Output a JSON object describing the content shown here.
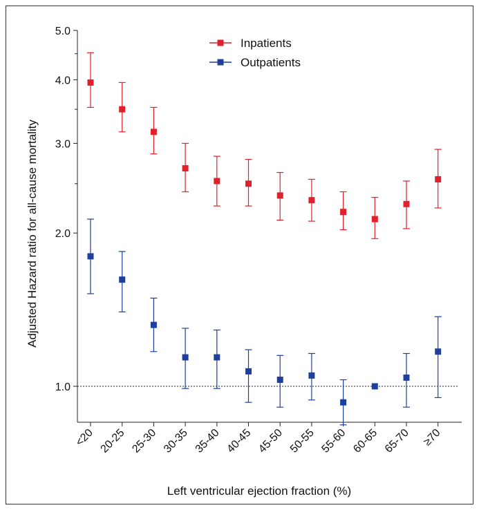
{
  "chart_data": {
    "type": "scatter",
    "title": "",
    "xlabel": "Left ventricular ejection fraction (%)",
    "ylabel": "Adjusted Hazard ratio for all-cause mortality",
    "y_scale": "log",
    "ylim": [
      0.85,
      5.0
    ],
    "y_major_ticks": [
      1.0,
      2.0,
      3.0,
      4.0,
      5.0
    ],
    "y_tick_labels": [
      "1.0",
      "2.0",
      "3.0",
      "4.0",
      "5.0"
    ],
    "y_minor_ticks": [
      2.5,
      3.5,
      4.5
    ],
    "reference_line": 1.0,
    "grid": false,
    "legend_position": "top-center",
    "categories": [
      "<20",
      "20-25",
      "25-30",
      "30-35",
      "35-40",
      "40-45",
      "45-50",
      "50-55",
      "55-60",
      "60-65",
      "65-70",
      "≥70"
    ],
    "series": [
      {
        "name": "Inpatients",
        "color": "#e0202a",
        "values": [
          3.95,
          3.5,
          3.16,
          2.68,
          2.53,
          2.5,
          2.37,
          2.32,
          2.2,
          2.13,
          2.28,
          2.55
        ],
        "lower": [
          3.53,
          3.16,
          2.86,
          2.41,
          2.26,
          2.26,
          2.12,
          2.11,
          2.03,
          1.95,
          2.04,
          2.24
        ],
        "upper": [
          4.52,
          3.95,
          3.53,
          3.0,
          2.83,
          2.79,
          2.63,
          2.55,
          2.41,
          2.35,
          2.53,
          2.92
        ]
      },
      {
        "name": "Outpatients",
        "color": "#1f3f9c",
        "values": [
          1.8,
          1.62,
          1.32,
          1.14,
          1.14,
          1.07,
          1.03,
          1.05,
          0.93,
          1.0,
          1.04,
          1.17
        ],
        "lower": [
          1.52,
          1.4,
          1.17,
          0.99,
          0.99,
          0.93,
          0.91,
          0.94,
          0.84,
          1.0,
          0.91,
          0.95
        ],
        "upper": [
          2.13,
          1.84,
          1.49,
          1.3,
          1.29,
          1.18,
          1.15,
          1.16,
          1.03,
          1.0,
          1.16,
          1.37
        ]
      }
    ]
  }
}
